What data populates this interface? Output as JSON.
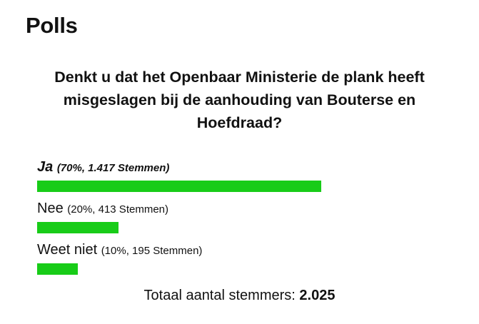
{
  "heading": "Polls",
  "question": "Denkt u dat het Openbaar Ministerie de plank heeft misgeslagen bij de aanhouding van Bouterse en Hoefdraad?",
  "bar_color": "#18cc18",
  "options": [
    {
      "label": "Ja",
      "meta": "(70%, 1.417 Stemmen)",
      "percent": 70,
      "winner": true
    },
    {
      "label": "Nee",
      "meta": "(20%, 413 Stemmen)",
      "percent": 20,
      "winner": false
    },
    {
      "label": "Weet niet",
      "meta": "(10%, 195 Stemmen)",
      "percent": 10,
      "winner": false
    }
  ],
  "total": {
    "label": "Totaal aantal stemmers:",
    "value": "2.025"
  }
}
